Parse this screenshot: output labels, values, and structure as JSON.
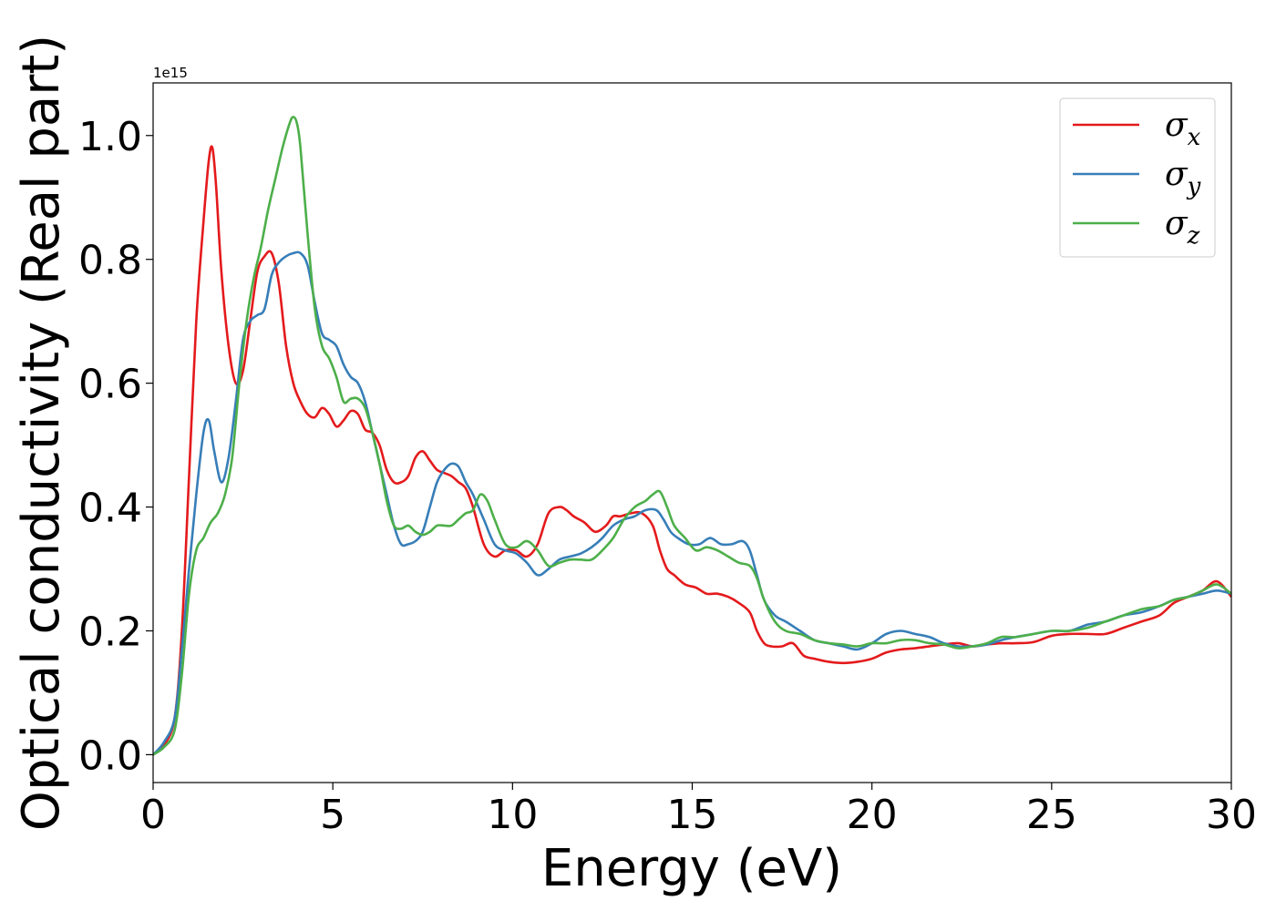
{
  "chart_data": {
    "type": "line",
    "title": "",
    "xlabel": "Energy (eV)",
    "ylabel": "Optical conductivity (Real part)",
    "y_offset_label": "1e15",
    "xlim": [
      0,
      30
    ],
    "ylim": [
      -0.045,
      1.085
    ],
    "x_ticks": [
      0,
      5,
      10,
      15,
      20,
      25,
      30
    ],
    "x_tick_labels": [
      "0",
      "5",
      "10",
      "15",
      "20",
      "25",
      "30"
    ],
    "y_ticks": [
      0.0,
      0.2,
      0.4,
      0.6,
      0.8,
      1.0
    ],
    "y_tick_labels": [
      "0.0",
      "0.2",
      "0.4",
      "0.6",
      "0.8",
      "1.0"
    ],
    "grid": false,
    "legend_position": "top-right",
    "series": [
      {
        "name": "σx",
        "legend_base": "σ",
        "legend_sub": "x",
        "color": "#e41a1c",
        "x": [
          0,
          0.3,
          0.6,
          0.8,
          1.0,
          1.2,
          1.4,
          1.55,
          1.65,
          1.75,
          1.9,
          2.1,
          2.3,
          2.5,
          2.7,
          2.9,
          3.1,
          3.3,
          3.5,
          3.7,
          3.9,
          4.1,
          4.3,
          4.5,
          4.7,
          4.9,
          5.1,
          5.3,
          5.5,
          5.7,
          5.9,
          6.1,
          6.3,
          6.5,
          6.7,
          6.9,
          7.1,
          7.3,
          7.5,
          7.7,
          7.9,
          8.1,
          8.3,
          8.5,
          8.7,
          8.9,
          9.2,
          9.5,
          9.8,
          10.1,
          10.4,
          10.7,
          11.0,
          11.3,
          11.5,
          11.7,
          12.0,
          12.3,
          12.6,
          12.8,
          13.0,
          13.3,
          13.6,
          13.9,
          14.1,
          14.3,
          14.5,
          14.8,
          15.1,
          15.4,
          15.7,
          16.0,
          16.3,
          16.6,
          16.8,
          17.0,
          17.2,
          17.5,
          17.8,
          18.1,
          18.4,
          18.8,
          19.2,
          19.6,
          20.0,
          20.4,
          20.8,
          21.2,
          21.6,
          22.0,
          22.4,
          22.8,
          23.2,
          23.6,
          24.0,
          24.5,
          25.0,
          25.5,
          26.0,
          26.5,
          27.0,
          27.5,
          28.0,
          28.4,
          28.8,
          29.2,
          29.6,
          30.0
        ],
        "y": [
          0.0,
          0.015,
          0.06,
          0.2,
          0.45,
          0.7,
          0.86,
          0.96,
          0.98,
          0.92,
          0.78,
          0.66,
          0.6,
          0.62,
          0.7,
          0.78,
          0.805,
          0.81,
          0.76,
          0.66,
          0.6,
          0.57,
          0.55,
          0.545,
          0.56,
          0.55,
          0.53,
          0.54,
          0.555,
          0.55,
          0.525,
          0.52,
          0.5,
          0.46,
          0.44,
          0.44,
          0.45,
          0.48,
          0.49,
          0.475,
          0.46,
          0.455,
          0.45,
          0.44,
          0.43,
          0.4,
          0.34,
          0.32,
          0.33,
          0.33,
          0.32,
          0.34,
          0.39,
          0.4,
          0.395,
          0.385,
          0.375,
          0.36,
          0.37,
          0.385,
          0.385,
          0.39,
          0.39,
          0.37,
          0.33,
          0.3,
          0.29,
          0.275,
          0.27,
          0.26,
          0.26,
          0.255,
          0.245,
          0.23,
          0.2,
          0.18,
          0.175,
          0.175,
          0.18,
          0.16,
          0.155,
          0.15,
          0.148,
          0.15,
          0.155,
          0.165,
          0.17,
          0.172,
          0.175,
          0.178,
          0.18,
          0.175,
          0.178,
          0.18,
          0.18,
          0.182,
          0.192,
          0.195,
          0.195,
          0.195,
          0.205,
          0.215,
          0.225,
          0.245,
          0.255,
          0.265,
          0.28,
          0.255
        ]
      },
      {
        "name": "σy",
        "legend_base": "σ",
        "legend_sub": "y",
        "color": "#377eb8",
        "x": [
          0,
          0.3,
          0.6,
          0.8,
          1.0,
          1.2,
          1.4,
          1.55,
          1.7,
          1.9,
          2.1,
          2.3,
          2.5,
          2.7,
          2.9,
          3.1,
          3.3,
          3.5,
          3.7,
          3.9,
          4.1,
          4.3,
          4.5,
          4.7,
          4.9,
          5.1,
          5.3,
          5.5,
          5.7,
          5.9,
          6.1,
          6.3,
          6.5,
          6.7,
          6.9,
          7.1,
          7.3,
          7.5,
          7.7,
          7.9,
          8.1,
          8.3,
          8.5,
          8.7,
          8.9,
          9.2,
          9.5,
          9.8,
          10.1,
          10.4,
          10.7,
          11.0,
          11.3,
          11.6,
          11.9,
          12.2,
          12.5,
          12.8,
          13.1,
          13.4,
          13.7,
          14.0,
          14.2,
          14.4,
          14.6,
          14.9,
          15.2,
          15.5,
          15.8,
          16.1,
          16.4,
          16.6,
          16.8,
          17.0,
          17.3,
          17.6,
          18.0,
          18.4,
          18.8,
          19.2,
          19.6,
          20.0,
          20.4,
          20.8,
          21.2,
          21.6,
          22.0,
          22.4,
          22.8,
          23.2,
          23.6,
          24.0,
          24.5,
          25.0,
          25.5,
          26.0,
          26.5,
          27.0,
          27.5,
          28.0,
          28.4,
          28.8,
          29.2,
          29.6,
          30.0
        ],
        "y": [
          0.0,
          0.02,
          0.06,
          0.17,
          0.3,
          0.42,
          0.52,
          0.54,
          0.49,
          0.44,
          0.48,
          0.57,
          0.67,
          0.7,
          0.71,
          0.72,
          0.775,
          0.795,
          0.805,
          0.81,
          0.81,
          0.79,
          0.73,
          0.68,
          0.67,
          0.66,
          0.63,
          0.61,
          0.6,
          0.57,
          0.52,
          0.47,
          0.42,
          0.37,
          0.34,
          0.34,
          0.345,
          0.36,
          0.4,
          0.44,
          0.46,
          0.47,
          0.465,
          0.44,
          0.42,
          0.38,
          0.34,
          0.33,
          0.325,
          0.31,
          0.29,
          0.3,
          0.315,
          0.32,
          0.325,
          0.335,
          0.35,
          0.37,
          0.38,
          0.385,
          0.395,
          0.395,
          0.38,
          0.36,
          0.35,
          0.34,
          0.34,
          0.35,
          0.34,
          0.34,
          0.345,
          0.33,
          0.29,
          0.25,
          0.225,
          0.215,
          0.2,
          0.185,
          0.18,
          0.175,
          0.17,
          0.18,
          0.195,
          0.2,
          0.195,
          0.19,
          0.18,
          0.175,
          0.175,
          0.178,
          0.185,
          0.19,
          0.195,
          0.2,
          0.2,
          0.21,
          0.215,
          0.225,
          0.23,
          0.24,
          0.25,
          0.255,
          0.26,
          0.265,
          0.26
        ]
      },
      {
        "name": "σz",
        "legend_base": "σ",
        "legend_sub": "z",
        "color": "#4daf4a",
        "x": [
          0,
          0.3,
          0.6,
          0.8,
          1.0,
          1.2,
          1.4,
          1.6,
          1.8,
          2.0,
          2.2,
          2.4,
          2.6,
          2.8,
          3.0,
          3.2,
          3.4,
          3.6,
          3.8,
          3.9,
          4.0,
          4.1,
          4.3,
          4.5,
          4.7,
          4.9,
          5.1,
          5.3,
          5.5,
          5.7,
          5.9,
          6.1,
          6.3,
          6.5,
          6.7,
          6.9,
          7.1,
          7.3,
          7.5,
          7.7,
          7.9,
          8.1,
          8.3,
          8.5,
          8.7,
          8.9,
          9.1,
          9.3,
          9.5,
          9.8,
          10.1,
          10.4,
          10.7,
          11.0,
          11.3,
          11.6,
          11.9,
          12.2,
          12.5,
          12.8,
          13.1,
          13.4,
          13.7,
          13.9,
          14.1,
          14.3,
          14.5,
          14.8,
          15.1,
          15.4,
          15.7,
          16.0,
          16.3,
          16.6,
          16.8,
          17.0,
          17.3,
          17.6,
          18.0,
          18.4,
          18.8,
          19.2,
          19.6,
          20.0,
          20.4,
          20.8,
          21.2,
          21.6,
          22.0,
          22.4,
          22.8,
          23.2,
          23.6,
          24.0,
          24.5,
          25.0,
          25.5,
          26.0,
          26.5,
          27.0,
          27.5,
          28.0,
          28.4,
          28.8,
          29.2,
          29.6,
          30.0
        ],
        "y": [
          0.0,
          0.012,
          0.04,
          0.13,
          0.26,
          0.33,
          0.35,
          0.375,
          0.39,
          0.42,
          0.48,
          0.6,
          0.7,
          0.77,
          0.82,
          0.88,
          0.93,
          0.98,
          1.02,
          1.03,
          1.02,
          0.98,
          0.84,
          0.72,
          0.66,
          0.64,
          0.61,
          0.57,
          0.575,
          0.575,
          0.56,
          0.52,
          0.47,
          0.41,
          0.37,
          0.365,
          0.37,
          0.36,
          0.355,
          0.36,
          0.37,
          0.37,
          0.37,
          0.38,
          0.39,
          0.395,
          0.42,
          0.41,
          0.38,
          0.34,
          0.335,
          0.345,
          0.33,
          0.305,
          0.31,
          0.315,
          0.315,
          0.315,
          0.33,
          0.35,
          0.38,
          0.4,
          0.41,
          0.42,
          0.425,
          0.4,
          0.37,
          0.35,
          0.33,
          0.335,
          0.33,
          0.32,
          0.31,
          0.305,
          0.285,
          0.25,
          0.215,
          0.2,
          0.195,
          0.185,
          0.18,
          0.178,
          0.175,
          0.18,
          0.18,
          0.185,
          0.185,
          0.18,
          0.178,
          0.172,
          0.175,
          0.18,
          0.19,
          0.19,
          0.195,
          0.2,
          0.2,
          0.205,
          0.215,
          0.225,
          0.235,
          0.24,
          0.25,
          0.255,
          0.265,
          0.275,
          0.26
        ]
      }
    ]
  }
}
